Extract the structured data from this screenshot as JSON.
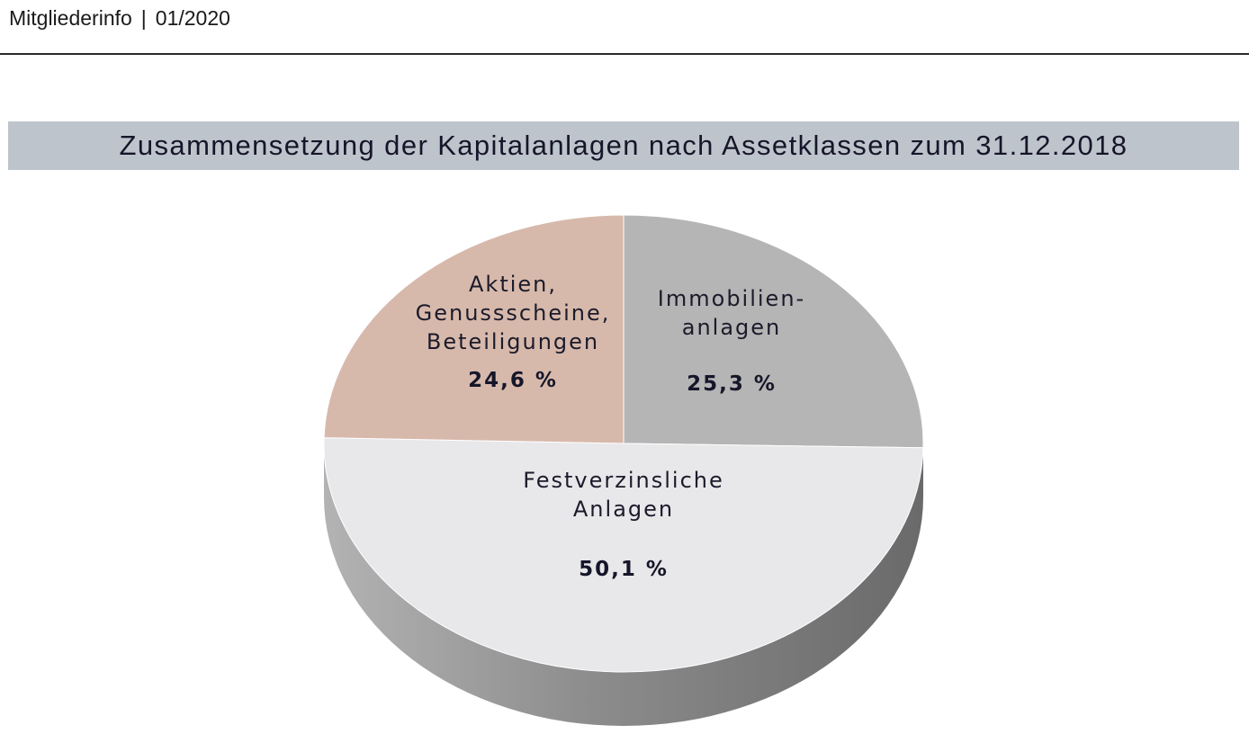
{
  "header": {
    "publication": "Mitgliederinfo",
    "separator": "|",
    "issue": "01/2020"
  },
  "colors": {
    "aktien": "#d7b9ab",
    "immobilien": "#b5b5b5",
    "festverzinslich": "#e8e7ea",
    "title_bar": "#bec4cb",
    "text": "#16162a"
  },
  "chart_data": {
    "type": "pie",
    "title": "Zusammensetzung der Kapitalanlagen nach Assetklassen zum 31.12.2018",
    "slices": [
      {
        "label_lines": [
          "Immobilien-",
          "anlagen"
        ],
        "value": 25.3,
        "value_label": "25,3 %",
        "color": "#b5b5b5"
      },
      {
        "label_lines": [
          "Festverzinsliche",
          "Anlagen"
        ],
        "value": 50.1,
        "value_label": "50,1 %",
        "color": "#e8e7ea"
      },
      {
        "label_lines": [
          "Aktien,",
          "Genussscheine,",
          "Beteiligungen"
        ],
        "value": 24.6,
        "value_label": "24,6 %",
        "color": "#d7b9ab"
      }
    ]
  }
}
